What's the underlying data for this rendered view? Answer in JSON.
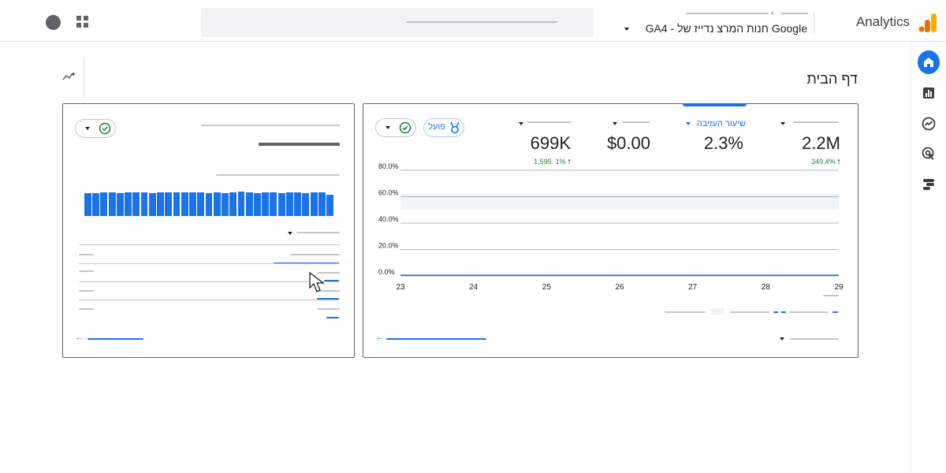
{
  "header": {
    "product": "Analytics",
    "property_name": "Google חנות המרצ נדייז של - GA4"
  },
  "page": {
    "title": "דף הבית"
  },
  "metrics": [
    {
      "label": "",
      "value": "2.2M",
      "change": "349.4%"
    },
    {
      "label": "שיעור העזיבה",
      "value": "2.3%",
      "change": ""
    },
    {
      "label": "",
      "value": "$0.00",
      "change": ""
    },
    {
      "label": "",
      "value": "699K",
      "change": "1,595. 1%"
    }
  ],
  "badge": {
    "label": "פועל"
  },
  "chart_data": {
    "type": "line",
    "categories": [
      "29",
      "28",
      "27",
      "26",
      "25",
      "24",
      "23"
    ],
    "yticks": [
      "80.0%",
      "60.0%",
      "40.0%",
      "20.0%",
      "0.0%"
    ],
    "ylim": [
      0,
      80
    ],
    "series": [
      {
        "name": "primary",
        "values": [
          0.5,
          0.5,
          0.5,
          0.5,
          0.5,
          0.5,
          0.5
        ]
      }
    ],
    "band": {
      "low": 50,
      "high": 62
    }
  },
  "realtime": {
    "bars": [
      0.86,
      0.86,
      0.89,
      0.87,
      0.86,
      0.87,
      0.89,
      0.88,
      0.86,
      0.87,
      0.88,
      0.87,
      0.87,
      0.88,
      0.87,
      0.86,
      0.88,
      0.86,
      0.87,
      0.9,
      0.87,
      0.86,
      0.88,
      0.87,
      0.86,
      0.88,
      0.87,
      0.86,
      0.89,
      0.87,
      0.79
    ]
  },
  "colors": {
    "accent": "#1a73e8",
    "positive": "#188038",
    "logo_orange": "#f9ab00",
    "logo_dark": "#e37400"
  }
}
